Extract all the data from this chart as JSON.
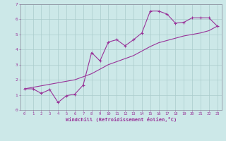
{
  "xlabel": "Windchill (Refroidissement éolien,°C)",
  "bg_color": "#cce8e8",
  "line_color": "#993399",
  "grid_color": "#aacccc",
  "spine_color": "#888899",
  "xlim": [
    -0.5,
    23.5
  ],
  "ylim": [
    0,
    7
  ],
  "xticks": [
    0,
    1,
    2,
    3,
    4,
    5,
    6,
    7,
    8,
    9,
    10,
    11,
    12,
    13,
    14,
    15,
    16,
    17,
    18,
    19,
    20,
    21,
    22,
    23
  ],
  "yticks": [
    0,
    1,
    2,
    3,
    4,
    5,
    6,
    7
  ],
  "series1_x": [
    0,
    1,
    2,
    3,
    4,
    5,
    6,
    7,
    8,
    9,
    10,
    11,
    12,
    13,
    14,
    15,
    16,
    17,
    18,
    19,
    20,
    21,
    22,
    23
  ],
  "series1_y": [
    1.4,
    1.4,
    1.1,
    1.35,
    0.5,
    0.95,
    1.05,
    1.65,
    3.8,
    3.25,
    4.5,
    4.65,
    4.25,
    4.65,
    5.1,
    6.55,
    6.55,
    6.35,
    5.75,
    5.8,
    6.1,
    6.1,
    6.1,
    5.55
  ],
  "series2_x": [
    0,
    1,
    2,
    3,
    4,
    5,
    6,
    7,
    8,
    9,
    10,
    11,
    12,
    13,
    14,
    15,
    16,
    17,
    18,
    19,
    20,
    21,
    22,
    23
  ],
  "series2_y": [
    1.4,
    1.5,
    1.6,
    1.7,
    1.8,
    1.9,
    2.0,
    2.2,
    2.4,
    2.7,
    3.0,
    3.2,
    3.4,
    3.6,
    3.9,
    4.2,
    4.45,
    4.6,
    4.75,
    4.9,
    5.0,
    5.1,
    5.25,
    5.55
  ],
  "tick_fontsize": 4.0,
  "xlabel_fontsize": 5.0,
  "linewidth": 0.8,
  "marker_size": 3.0
}
